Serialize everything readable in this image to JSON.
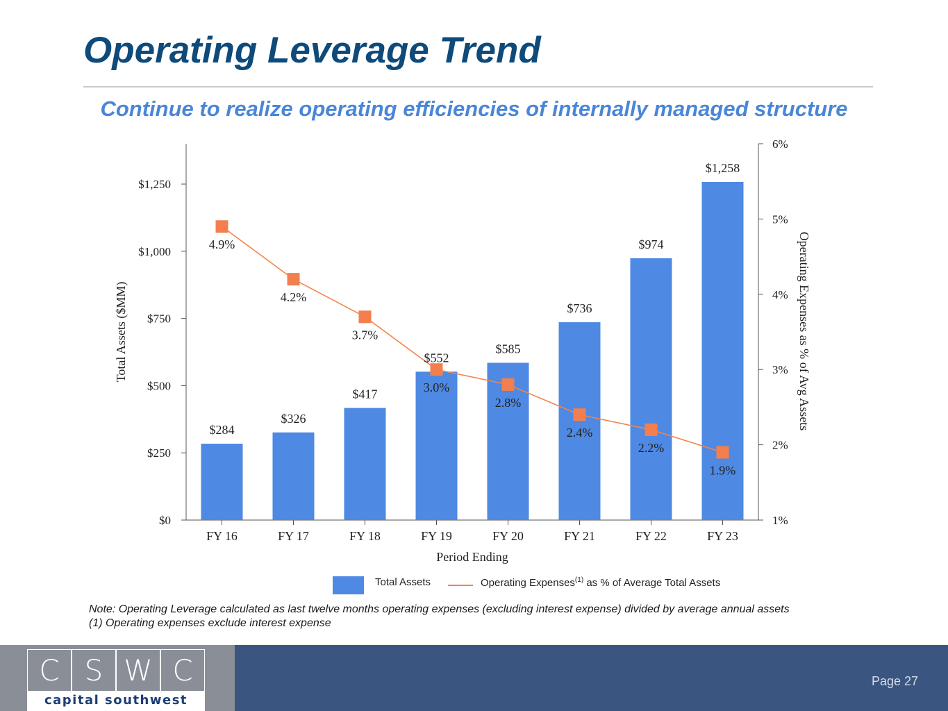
{
  "title": "Operating Leverage Trend",
  "subtitle": "Continue to realize operating efficiencies of internally managed structure",
  "colors": {
    "bar": "#4e89e3",
    "line": "#f4844a",
    "marker": "#f27f4d",
    "title": "#0e4a7a",
    "subtitle": "#4a86d8",
    "footer_bar": "#3a5580",
    "footer_logo_bg": "#8a8f97"
  },
  "chart_data": {
    "type": "bar",
    "categories": [
      "FY 16",
      "FY 17",
      "FY 18",
      "FY 19",
      "FY 20",
      "FY 21",
      "FY 22",
      "FY 23"
    ],
    "xlabel": "Period Ending",
    "ylabel": "Total Assets ($MM)",
    "y2label": "Operating Expenses as % of Avg Assets",
    "ylim": [
      0,
      1400
    ],
    "yticks": [
      0,
      250,
      500,
      750,
      1000,
      1250
    ],
    "ytick_labels": [
      "$0",
      "$250",
      "$500",
      "$750",
      "$1,000",
      "$1,250"
    ],
    "y2lim": [
      1,
      6
    ],
    "y2ticks": [
      1,
      2,
      3,
      4,
      5,
      6
    ],
    "y2tick_labels": [
      "1%",
      "2%",
      "3%",
      "4%",
      "5%",
      "6%"
    ],
    "series": [
      {
        "name": "Total Assets",
        "type": "bar",
        "axis": "left",
        "values": [
          284,
          326,
          417,
          552,
          585,
          736,
          974,
          1258
        ],
        "labels": [
          "$284",
          "$326",
          "$417",
          "$552",
          "$585",
          "$736",
          "$974",
          "$1,258"
        ]
      },
      {
        "name": "Operating Expenses as % of Average Total Assets",
        "type": "line",
        "axis": "right",
        "values": [
          4.9,
          4.2,
          3.7,
          3.0,
          2.8,
          2.4,
          2.2,
          1.9
        ],
        "labels": [
          "4.9%",
          "4.2%",
          "3.7%",
          "3.0%",
          "2.8%",
          "2.4%",
          "2.2%",
          "1.9%"
        ]
      }
    ],
    "legend_position": "bottom",
    "grid": false
  },
  "legend": {
    "bars": "Total Assets",
    "line_prefix": "Operating Expenses",
    "line_sup": "(1)",
    "line_suffix": " as % of Average Total Assets"
  },
  "notes": [
    "Note: Operating Leverage calculated as last twelve months operating expenses (excluding interest expense) divided by average annual assets",
    "(1) Operating expenses exclude interest expense"
  ],
  "footer": {
    "logo_letters": [
      "C",
      "S",
      "W",
      "C"
    ],
    "logo_name": "capital southwest",
    "page": "Page 27"
  }
}
